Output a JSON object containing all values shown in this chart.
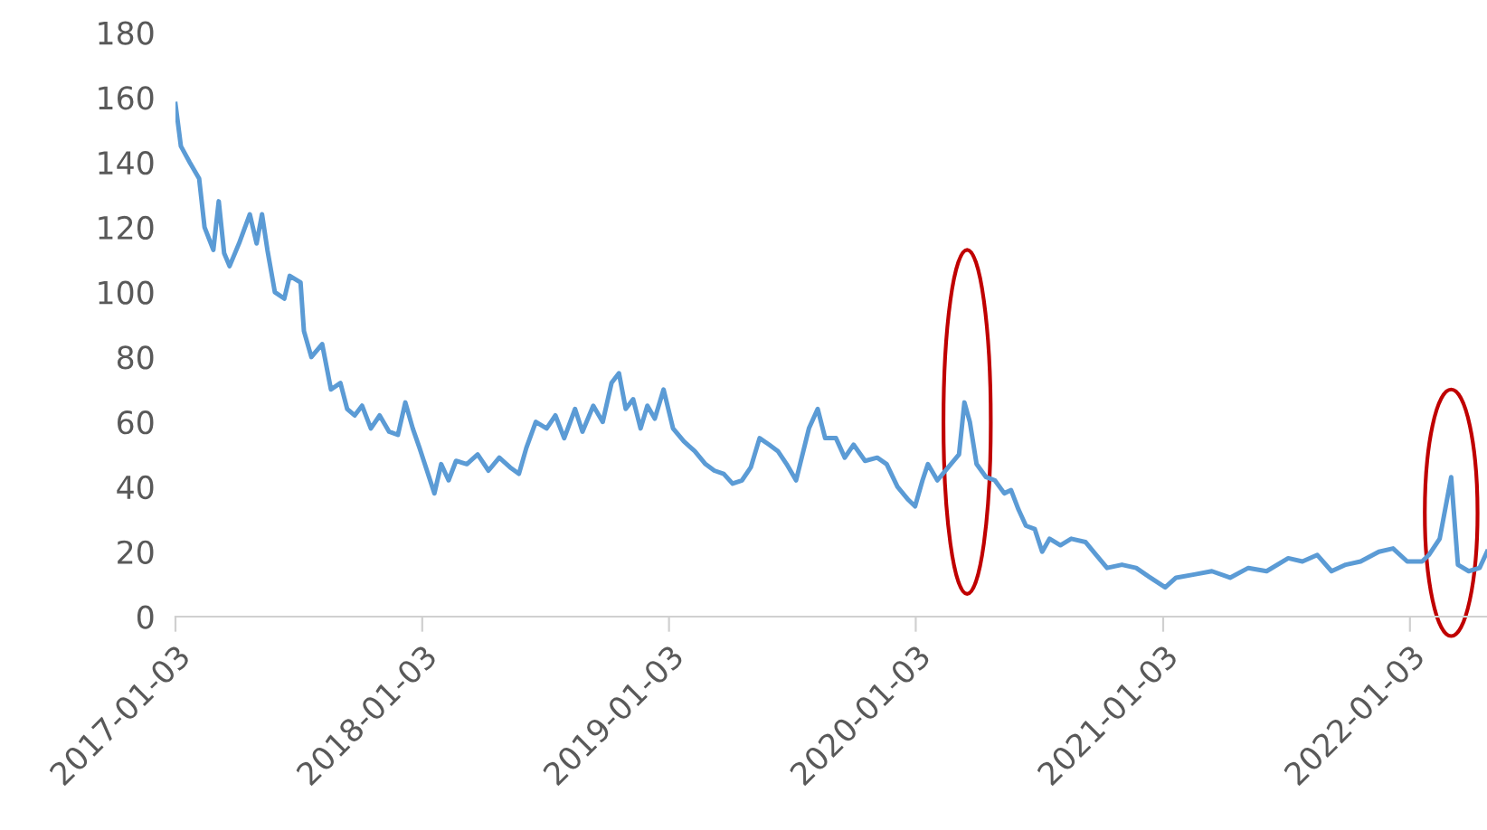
{
  "chart_data": {
    "type": "line",
    "x": [
      "2017-01-03",
      "2017-01-11",
      "2017-01-24",
      "2017-02-07",
      "2017-02-15",
      "2017-02-28",
      "2017-03-08",
      "2017-03-16",
      "2017-03-24",
      "2017-04-07",
      "2017-04-23",
      "2017-05-03",
      "2017-05-11",
      "2017-05-19",
      "2017-05-30",
      "2017-06-13",
      "2017-06-21",
      "2017-07-07",
      "2017-07-12",
      "2017-07-23",
      "2017-08-08",
      "2017-08-21",
      "2017-09-04",
      "2017-09-14",
      "2017-09-25",
      "2017-10-06",
      "2017-10-19",
      "2017-11-01",
      "2017-11-15",
      "2017-11-28",
      "2017-12-09",
      "2017-12-20",
      "2017-12-30",
      "2018-01-10",
      "2018-01-21",
      "2018-01-31",
      "2018-02-11",
      "2018-02-22",
      "2018-03-10",
      "2018-03-26",
      "2018-04-11",
      "2018-04-27",
      "2018-05-13",
      "2018-05-26",
      "2018-06-06",
      "2018-06-20",
      "2018-07-06",
      "2018-07-19",
      "2018-08-01",
      "2018-08-17",
      "2018-08-28",
      "2018-09-13",
      "2018-09-27",
      "2018-10-10",
      "2018-10-21",
      "2018-10-31",
      "2018-11-11",
      "2018-11-22",
      "2018-12-02",
      "2018-12-13",
      "2018-12-26",
      "2019-01-09",
      "2019-01-25",
      "2019-02-10",
      "2019-02-26",
      "2019-03-11",
      "2019-03-25",
      "2019-04-07",
      "2019-04-21",
      "2019-05-04",
      "2019-05-17",
      "2019-05-31",
      "2019-06-13",
      "2019-06-26",
      "2019-07-10",
      "2019-07-29",
      "2019-08-11",
      "2019-08-22",
      "2019-09-07",
      "2019-09-20",
      "2019-10-03",
      "2019-10-20",
      "2019-11-07",
      "2019-11-21",
      "2019-12-07",
      "2019-12-23",
      "2020-01-02",
      "2020-01-13",
      "2020-01-21",
      "2020-02-04",
      "2020-02-20",
      "2020-03-07",
      "2020-03-15",
      "2020-03-23",
      "2020-04-02",
      "2020-04-16",
      "2020-04-29",
      "2020-05-13",
      "2020-05-23",
      "2020-06-03",
      "2020-06-14",
      "2020-06-27",
      "2020-07-08",
      "2020-07-19",
      "2020-08-04",
      "2020-08-20",
      "2020-09-10",
      "2020-09-26",
      "2020-10-12",
      "2020-11-03",
      "2020-11-24",
      "2020-12-15",
      "2021-01-06",
      "2021-01-22",
      "2021-02-18",
      "2021-03-16",
      "2021-04-12",
      "2021-05-09",
      "2021-06-05",
      "2021-07-07",
      "2021-07-28",
      "2021-08-19",
      "2021-09-09",
      "2021-09-30",
      "2021-10-22",
      "2021-11-18",
      "2021-12-09",
      "2021-12-30",
      "2022-01-21",
      "2022-01-31",
      "2022-02-16",
      "2022-03-05",
      "2022-03-15",
      "2022-03-31",
      "2022-04-16",
      "2022-04-27"
    ],
    "series": [
      {
        "color": "#5b9bd5",
        "values": [
          158,
          145,
          140,
          135,
          120,
          113,
          128,
          112,
          108,
          115,
          124,
          115,
          124,
          113,
          100,
          98,
          105,
          103,
          88,
          80,
          84,
          70,
          72,
          64,
          62,
          65,
          58,
          62,
          57,
          56,
          66,
          58,
          52,
          45,
          38,
          47,
          42,
          48,
          47,
          50,
          45,
          49,
          46,
          44,
          52,
          60,
          58,
          62,
          55,
          64,
          57,
          65,
          60,
          72,
          75,
          64,
          67,
          58,
          65,
          61,
          70,
          58,
          54,
          51,
          47,
          45,
          44,
          41,
          42,
          46,
          55,
          53,
          51,
          47,
          42,
          58,
          64,
          55,
          55,
          49,
          53,
          48,
          49,
          47,
          40,
          36,
          34,
          42,
          47,
          42,
          46,
          50,
          66,
          60,
          47,
          43,
          42,
          38,
          39,
          33,
          28,
          27,
          20,
          24,
          22,
          24,
          23,
          19,
          15,
          16,
          15,
          12,
          9,
          12,
          13,
          14,
          12,
          15,
          14,
          18,
          17,
          19,
          14,
          16,
          17,
          20,
          21,
          17,
          17,
          19,
          24,
          43,
          16,
          14,
          15,
          20
        ]
      }
    ],
    "xlim": [
      "2017-01-03",
      "2022-04-27"
    ],
    "xticks": [
      {
        "value": "2017-01-03",
        "label": "2017-01-03"
      },
      {
        "value": "2018-01-03",
        "label": "2018-01-03"
      },
      {
        "value": "2019-01-03",
        "label": "2019-01-03"
      },
      {
        "value": "2020-01-03",
        "label": "2020-01-03"
      },
      {
        "value": "2021-01-03",
        "label": "2021-01-03"
      },
      {
        "value": "2022-01-03",
        "label": "2022-01-03"
      }
    ],
    "ylim": [
      0,
      180
    ],
    "yticks": [
      0,
      20,
      40,
      60,
      80,
      100,
      120,
      140,
      160,
      180
    ],
    "grid": false,
    "legend": false,
    "marker": "none",
    "line_style": "solid"
  }
}
